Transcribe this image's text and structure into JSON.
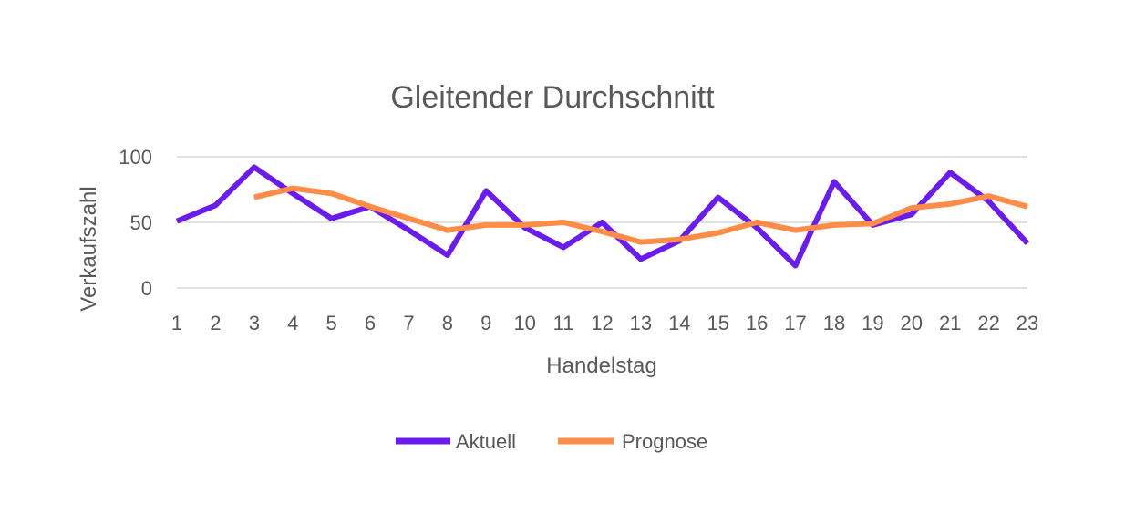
{
  "chart_data": {
    "type": "line",
    "title": "Gleitender Durchschnitt",
    "xlabel": "Handelstag",
    "ylabel": "Verkaufszahl",
    "x": [
      1,
      2,
      3,
      4,
      5,
      6,
      7,
      8,
      9,
      10,
      11,
      12,
      13,
      14,
      15,
      16,
      17,
      18,
      19,
      20,
      21,
      22,
      23
    ],
    "x_tick_labels": [
      "1",
      "2",
      "3",
      "4",
      "5",
      "6",
      "7",
      "8",
      "9",
      "10",
      "11",
      "12",
      "13",
      "14",
      "15",
      "16",
      "17",
      "18",
      "19",
      "20",
      "21",
      "22",
      "23"
    ],
    "y_ticks": [
      0,
      50,
      100
    ],
    "y_tick_labels": [
      "0",
      "50",
      "100"
    ],
    "ylim": [
      0,
      100
    ],
    "grid": true,
    "legend_position": "bottom",
    "series": [
      {
        "name": "Aktuell",
        "color": "#6a1bed",
        "values": [
          51,
          63,
          92,
          72,
          53,
          62,
          44,
          25,
          74,
          46,
          31,
          50,
          22,
          36,
          69,
          46,
          17,
          81,
          48,
          56,
          88,
          66,
          34
        ]
      },
      {
        "name": "Prognose",
        "color": "#ff8c47",
        "values": [
          null,
          null,
          69,
          76,
          72,
          62,
          53,
          44,
          48,
          48,
          50,
          43,
          35,
          37,
          42,
          50,
          44,
          48,
          49,
          61,
          64,
          70,
          62
        ]
      }
    ]
  }
}
